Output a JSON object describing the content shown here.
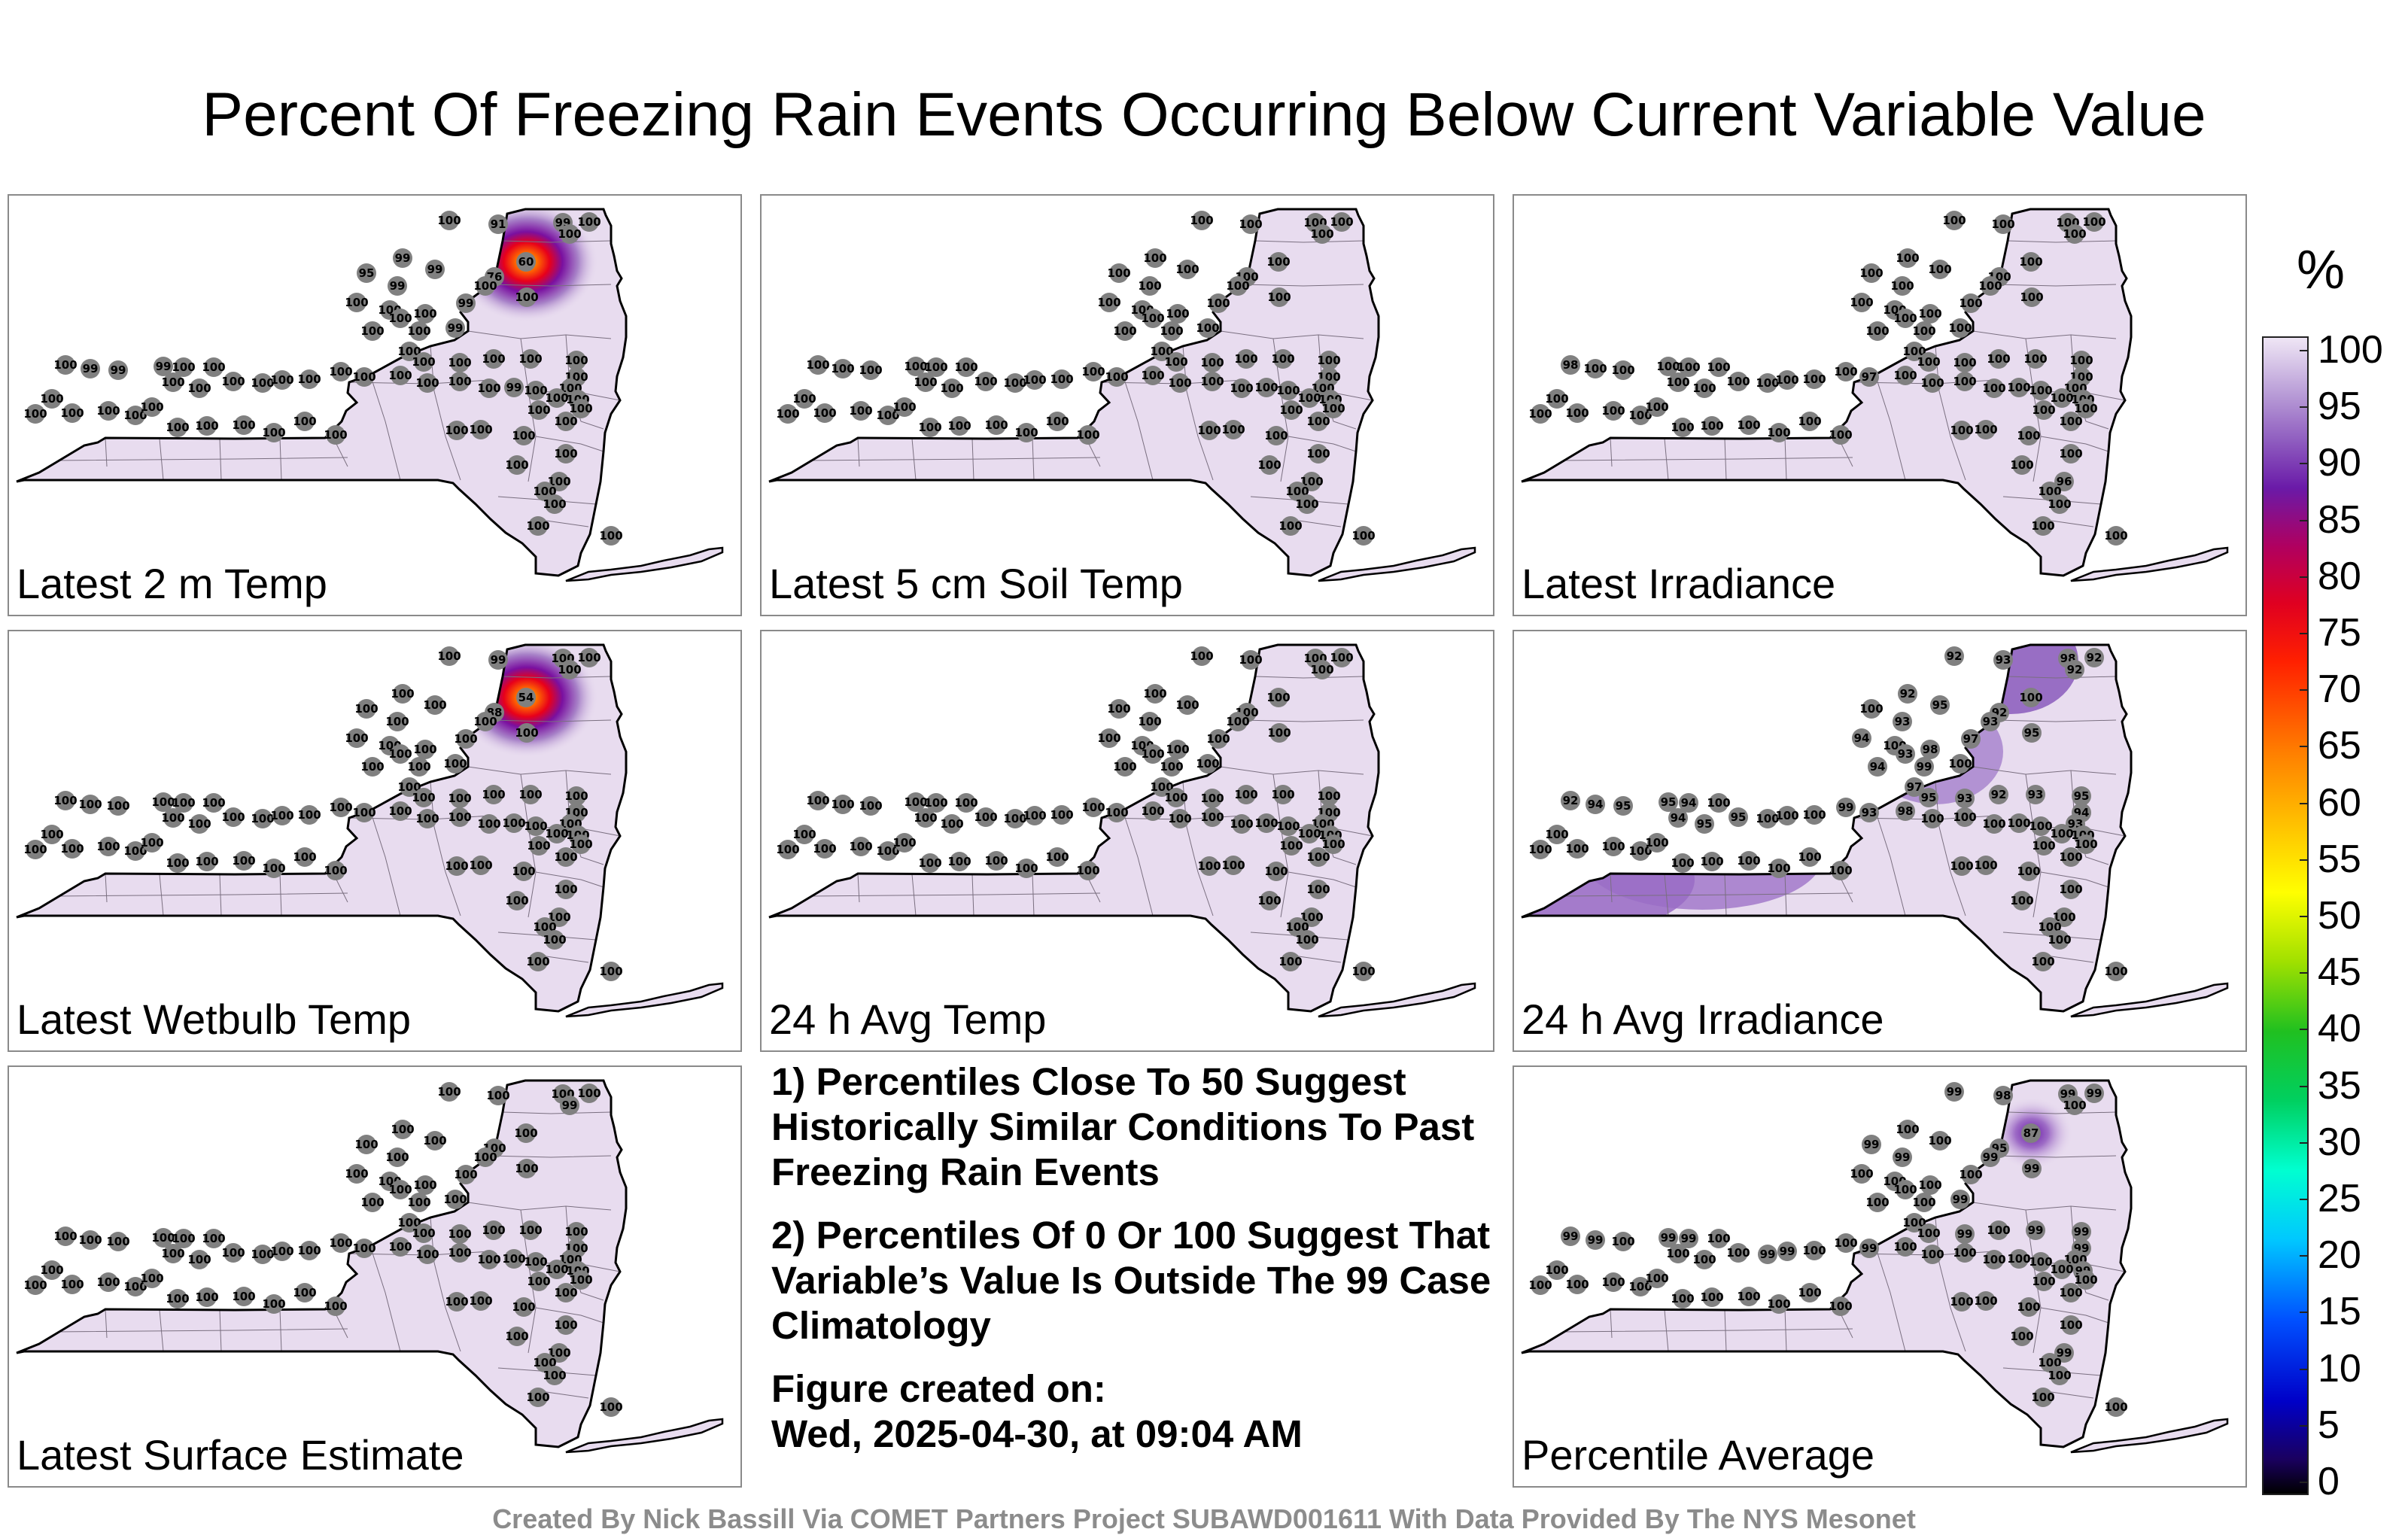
{
  "title": "Percent Of Freezing Rain Events Occurring Below Current Variable Value",
  "panels": [
    {
      "label": "Latest 2 m Temp",
      "hotspot": "red",
      "stations": [
        "100",
        "91",
        "99",
        "100",
        "100",
        "99",
        "60",
        "76",
        "99",
        "95",
        "99",
        "100",
        "100",
        "99",
        "100",
        "100",
        "100",
        "100",
        "100",
        "99",
        "100",
        "100",
        "100",
        "100",
        "100",
        "100",
        "100",
        "100",
        "100",
        "100",
        "100",
        "99",
        "99",
        "99",
        "100",
        "100",
        "100",
        "100",
        "100",
        "100",
        "100",
        "100",
        "100",
        "100",
        "100",
        "100",
        "100",
        "100",
        "99",
        "100",
        "100",
        "100",
        "100",
        "100",
        "100",
        "100",
        "100",
        "100",
        "100",
        "100",
        "100",
        "100",
        "100",
        "100",
        "100",
        "100",
        "100",
        "100",
        "100",
        "100",
        "100",
        "100",
        "100",
        "100",
        "100",
        "100"
      ]
    },
    {
      "label": "Latest 5 cm Soil Temp",
      "hotspot": "",
      "stations": [
        "100",
        "100",
        "100",
        "100",
        "100",
        "100",
        "100",
        "100",
        "100",
        "100",
        "100",
        "100",
        "100",
        "100",
        "100",
        "100",
        "100",
        "100",
        "100",
        "100",
        "100",
        "100",
        "100",
        "100",
        "100",
        "100",
        "100",
        "100",
        "100",
        "100",
        "100",
        "100",
        "100",
        "100",
        "100",
        "100",
        "100",
        "100",
        "100",
        "100",
        "100",
        "100",
        "100",
        "100",
        "100",
        "100",
        "100",
        "100",
        "100",
        "100",
        "100",
        "100",
        "100",
        "100",
        "100",
        "100",
        "100",
        "100",
        "100",
        "100",
        "100",
        "100",
        "100",
        "100",
        "100",
        "100",
        "100",
        "100",
        "100",
        "100",
        "100",
        "100",
        "100",
        "100",
        "100",
        "100"
      ]
    },
    {
      "label": "Latest Irradiance",
      "hotspot": "",
      "stations": [
        "100",
        "100",
        "100",
        "100",
        "100",
        "100",
        "100",
        "100",
        "100",
        "100",
        "100",
        "100",
        "100",
        "100",
        "100",
        "100",
        "100",
        "100",
        "100",
        "100",
        "100",
        "100",
        "100",
        "100",
        "100",
        "100",
        "100",
        "100",
        "100",
        "100",
        "98",
        "100",
        "100",
        "100",
        "100",
        "100",
        "100",
        "100",
        "100",
        "100",
        "100",
        "100",
        "100",
        "97",
        "100",
        "100",
        "100",
        "100",
        "100",
        "100",
        "100",
        "100",
        "100",
        "100",
        "100",
        "100",
        "100",
        "100",
        "100",
        "100",
        "100",
        "100",
        "100",
        "100",
        "100",
        "100",
        "100",
        "100",
        "100",
        "100",
        "100",
        "96",
        "100",
        "100",
        "100",
        "100"
      ]
    },
    {
      "label": "Latest Wetbulb Temp",
      "hotspot": "red",
      "stations": [
        "100",
        "99",
        "100",
        "100",
        "100",
        "100",
        "54",
        "88",
        "100",
        "100",
        "100",
        "100",
        "100",
        "100",
        "100",
        "100",
        "100",
        "100",
        "100",
        "100",
        "100",
        "100",
        "100",
        "100",
        "100",
        "100",
        "100",
        "100",
        "100",
        "100",
        "100",
        "100",
        "100",
        "100",
        "100",
        "100",
        "100",
        "100",
        "100",
        "100",
        "100",
        "100",
        "100",
        "100",
        "100",
        "100",
        "100",
        "100",
        "100",
        "100",
        "100",
        "100",
        "100",
        "100",
        "100",
        "100",
        "100",
        "100",
        "100",
        "100",
        "100",
        "100",
        "100",
        "100",
        "100",
        "100",
        "100",
        "100",
        "100",
        "100",
        "100",
        "100",
        "100",
        "100",
        "100",
        "100"
      ]
    },
    {
      "label": "24 h Avg Temp",
      "hotspot": "",
      "stations": [
        "100",
        "100",
        "100",
        "100",
        "100",
        "100",
        "100",
        "100",
        "100",
        "100",
        "100",
        "100",
        "100",
        "100",
        "100",
        "100",
        "100",
        "100",
        "100",
        "100",
        "100",
        "100",
        "100",
        "100",
        "100",
        "100",
        "100",
        "100",
        "100",
        "100",
        "100",
        "100",
        "100",
        "100",
        "100",
        "100",
        "100",
        "100",
        "100",
        "100",
        "100",
        "100",
        "100",
        "100",
        "100",
        "100",
        "100",
        "100",
        "100",
        "100",
        "100",
        "100",
        "100",
        "100",
        "100",
        "100",
        "100",
        "100",
        "100",
        "100",
        "100",
        "100",
        "100",
        "100",
        "100",
        "100",
        "100",
        "100",
        "100",
        "100",
        "100",
        "100",
        "100",
        "100",
        "100",
        "100"
      ]
    },
    {
      "label": "24 h Avg Irradiance",
      "hotspot": "",
      "stations": [
        "92",
        "93",
        "98",
        "92",
        "92",
        "92",
        "100",
        "92",
        "95",
        "100",
        "93",
        "93",
        "95",
        "97",
        "98",
        "94",
        "100",
        "93",
        "99",
        "100",
        "94",
        "97",
        "95",
        "93",
        "92",
        "93",
        "95",
        "94",
        "93",
        "100",
        "92",
        "94",
        "95",
        "95",
        "94",
        "100",
        "94",
        "95",
        "95",
        "100",
        "100",
        "100",
        "99",
        "93",
        "98",
        "100",
        "100",
        "100",
        "100",
        "100",
        "100",
        "100",
        "100",
        "100",
        "100",
        "100",
        "100",
        "100",
        "100",
        "100",
        "100",
        "100",
        "100",
        "100",
        "100",
        "100",
        "100",
        "100",
        "100",
        "100",
        "100",
        "100",
        "100",
        "100",
        "100",
        "100"
      ]
    },
    {
      "label": "Latest Surface Estimate",
      "hotspot": "",
      "stations": [
        "100",
        "100",
        "100",
        "100",
        "99",
        "100",
        "100",
        "100",
        "100",
        "100",
        "100",
        "100",
        "100",
        "100",
        "100",
        "100",
        "100",
        "100",
        "100",
        "100",
        "100",
        "100",
        "100",
        "100",
        "100",
        "100",
        "100",
        "100",
        "100",
        "100",
        "100",
        "100",
        "100",
        "100",
        "100",
        "100",
        "100",
        "100",
        "100",
        "100",
        "100",
        "100",
        "100",
        "100",
        "100",
        "100",
        "100",
        "100",
        "100",
        "100",
        "100",
        "100",
        "100",
        "100",
        "100",
        "100",
        "100",
        "100",
        "100",
        "100",
        "100",
        "100",
        "100",
        "100",
        "100",
        "100",
        "100",
        "100",
        "100",
        "100",
        "100",
        "100",
        "100",
        "100",
        "100",
        "100"
      ]
    },
    {
      "label": "Percentile Average",
      "hotspot": "purple",
      "stations": [
        "99",
        "98",
        "99",
        "99",
        "100",
        "100",
        "87",
        "95",
        "100",
        "99",
        "99",
        "99",
        "99",
        "100",
        "100",
        "100",
        "100",
        "100",
        "100",
        "99",
        "100",
        "100",
        "100",
        "99",
        "100",
        "99",
        "99",
        "99",
        "100",
        "99",
        "99",
        "99",
        "100",
        "99",
        "99",
        "100",
        "100",
        "100",
        "100",
        "99",
        "99",
        "100",
        "100",
        "99",
        "100",
        "100",
        "100",
        "100",
        "100",
        "100",
        "100",
        "100",
        "100",
        "100",
        "100",
        "100",
        "100",
        "100",
        "100",
        "100",
        "100",
        "100",
        "100",
        "100",
        "100",
        "100",
        "100",
        "100",
        "100",
        "100",
        "100",
        "99",
        "100",
        "100",
        "100",
        "100"
      ]
    }
  ],
  "notes": [
    "1) Percentiles Close To 50 Suggest Historically Similar Conditions To Past Freezing Rain Events",
    "2) Percentiles Of 0 Or 100 Suggest That Variable’s Value Is Outside The 99 Case Climatology",
    "Figure created on:",
    "Wed, 2025-04-30, at 09:04 AM"
  ],
  "legend": {
    "unit": "%",
    "ticks": [
      "100",
      "95",
      "90",
      "85",
      "80",
      "75",
      "70",
      "65",
      "60",
      "55",
      "50",
      "45",
      "40",
      "35",
      "30",
      "25",
      "20",
      "15",
      "10",
      "5",
      "0"
    ]
  },
  "footer": "Created By Nick Bassill Via COMET Partners Project SUBAWD001611 With Data Provided By The NYS Mesonet",
  "colors": {
    "fill": "#e8dcef",
    "outline": "#000000",
    "station": "#808080",
    "panel_border": "#8a8a8a",
    "footer": "#8c8c8c"
  }
}
